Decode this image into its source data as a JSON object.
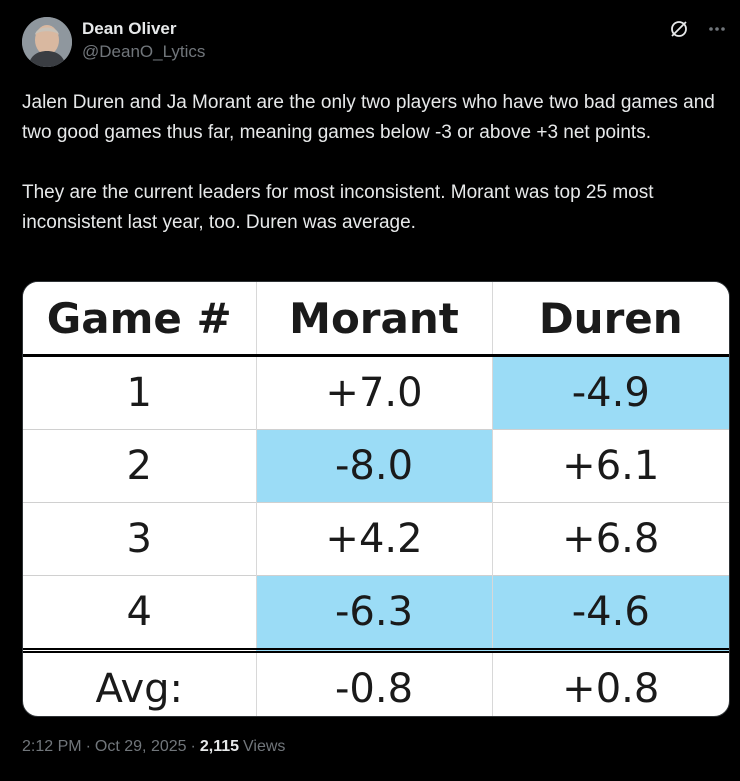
{
  "author": {
    "display_name": "Dean Oliver",
    "handle": "@DeanO_Lytics"
  },
  "tweet": {
    "text": "Jalen Duren and Ja Morant are the only two players who have two bad games and two good games thus far, meaning games below -3 or above +3 net points.\n\nThey are the current leaders for most inconsistent. Morant was top 25 most inconsistent last year, too. Duren was average."
  },
  "table": {
    "headers": [
      "Game #",
      "Morant",
      "Duren"
    ],
    "rows": [
      {
        "game": "1",
        "morant": "+7.0",
        "duren": "-4.9"
      },
      {
        "game": "2",
        "morant": "-8.0",
        "duren": "+6.1"
      },
      {
        "game": "3",
        "morant": "+4.2",
        "duren": "+6.8"
      },
      {
        "game": "4",
        "morant": "-6.3",
        "duren": "-4.6"
      }
    ],
    "avg": {
      "label": "Avg:",
      "morant": "-0.8",
      "duren": "+0.8"
    },
    "highlight_color": "#9bdcf6"
  },
  "meta": {
    "time": "2:12 PM",
    "separator": "·",
    "date": "Oct 29, 2025",
    "views_count": "2,115",
    "views_label": "Views"
  },
  "icons": [
    "grok-icon",
    "more-icon"
  ]
}
